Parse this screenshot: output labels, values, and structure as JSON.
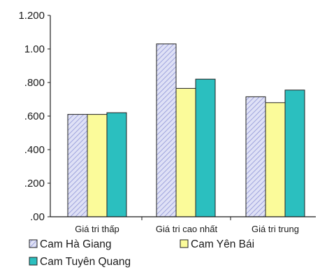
{
  "chart_data": {
    "type": "bar",
    "categories": [
      "Giá tri thấp",
      "Giá tri cao nhất",
      "Giá tri trung"
    ],
    "series": [
      {
        "name": "Cam Hà Giang",
        "values": [
          0.61,
          1.03,
          0.715
        ]
      },
      {
        "name": "Cam Yên Bái",
        "values": [
          0.61,
          0.765,
          0.68
        ]
      },
      {
        "name": "Cam Tuyên Quang",
        "values": [
          0.62,
          0.82,
          0.755
        ]
      }
    ],
    "yticks": [
      {
        "value": 0,
        "label": ".00"
      },
      {
        "value": 0.2,
        "label": ".200"
      },
      {
        "value": 0.4,
        "label": ".400"
      },
      {
        "value": 0.6,
        "label": ".600"
      },
      {
        "value": 0.8,
        "label": ".800"
      },
      {
        "value": 1.0,
        "label": "1.00"
      },
      {
        "value": 1.2,
        "label": "1.200"
      }
    ],
    "ylim": [
      0,
      1.2
    ],
    "grid": false,
    "legend_position": "bottom",
    "colors": {
      "Cam Hà Giang": "#c9cdee",
      "Cam Yên Bái": "#fbfb9a",
      "Cam Tuyên Quang": "#2bbfbf",
      "axis": "#1a1a1a",
      "bar_outline": "#222222"
    }
  }
}
